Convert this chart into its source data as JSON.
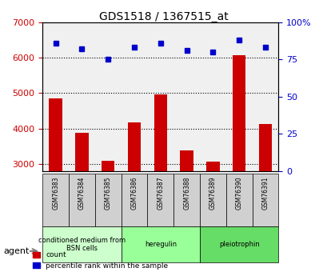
{
  "title": "GDS1518 / 1367515_at",
  "samples": [
    "GSM76383",
    "GSM76384",
    "GSM76385",
    "GSM76386",
    "GSM76387",
    "GSM76388",
    "GSM76389",
    "GSM76390",
    "GSM76391"
  ],
  "counts": [
    4850,
    3880,
    3080,
    4170,
    4960,
    3380,
    3060,
    6060,
    4120
  ],
  "percentiles": [
    86,
    82,
    75,
    83,
    86,
    81,
    80,
    88,
    83
  ],
  "ylim_left": [
    2800,
    7000
  ],
  "ylim_right": [
    0,
    100
  ],
  "yticks_left": [
    3000,
    4000,
    5000,
    6000,
    7000
  ],
  "yticks_right": [
    0,
    25,
    50,
    75,
    100
  ],
  "groups": [
    {
      "label": "conditioned medium from\nBSN cells",
      "start": 0,
      "end": 3,
      "color": "#ccffcc"
    },
    {
      "label": "heregulin",
      "start": 3,
      "end": 6,
      "color": "#99ff99"
    },
    {
      "label": "pleiotrophin",
      "start": 6,
      "end": 9,
      "color": "#66dd66"
    }
  ],
  "bar_color": "#cc0000",
  "dot_color": "#0000cc",
  "bar_width": 0.5,
  "tick_label_color_left": "#cc0000",
  "tick_label_color_right": "#0000cc",
  "background_color": "#f0f0f0",
  "grid_color": "#000000",
  "agent_label": "agent"
}
